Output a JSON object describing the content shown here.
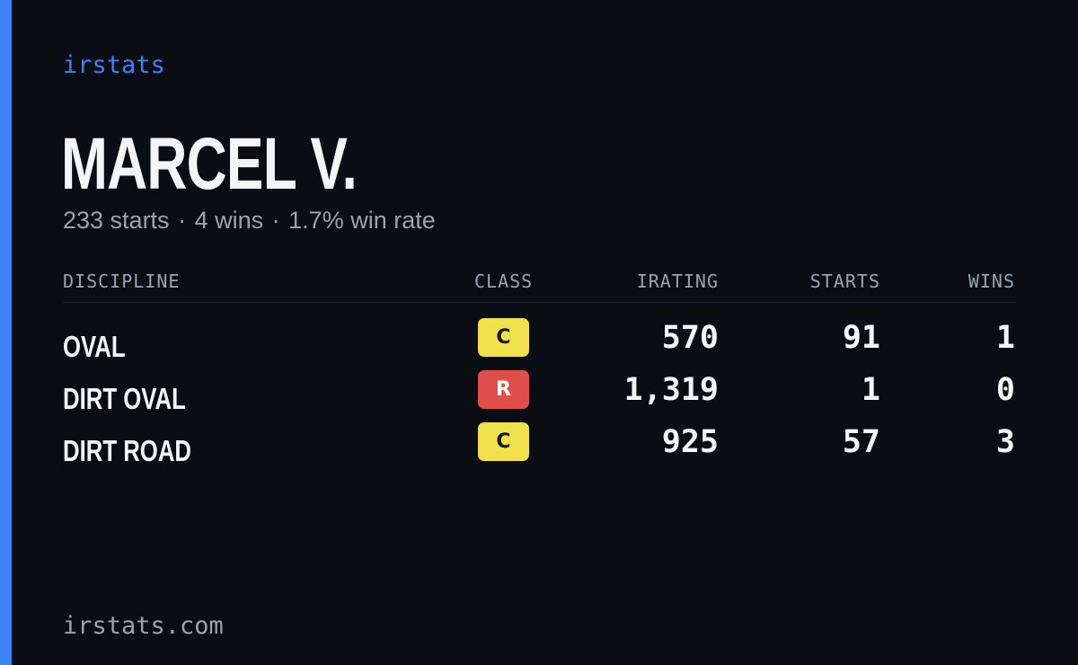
{
  "colors": {
    "background": "#0a0d14",
    "accent": "#3d82f6",
    "text_primary": "#f3f5f8",
    "text_muted": "#9aa3b2",
    "class_c": "#f0e04a",
    "class_r": "#e0504a"
  },
  "brand": "irstats",
  "player": {
    "name": "MARCEL V.",
    "starts_text": "233 starts",
    "wins_text": "4 wins",
    "win_rate_text": "1.7% win rate",
    "separator": "·"
  },
  "table": {
    "headers": {
      "discipline": "DISCIPLINE",
      "class": "CLASS",
      "irating": "IRATING",
      "starts": "STARTS",
      "wins": "WINS"
    },
    "rows": [
      {
        "discipline": "OVAL",
        "class": "C",
        "class_color": "#f0e04a",
        "irating": "570",
        "starts": "91",
        "wins": "1"
      },
      {
        "discipline": "DIRT OVAL",
        "class": "R",
        "class_color": "#e0504a",
        "irating": "1,319",
        "starts": "1",
        "wins": "0"
      },
      {
        "discipline": "DIRT ROAD",
        "class": "C",
        "class_color": "#f0e04a",
        "irating": "925",
        "starts": "57",
        "wins": "3"
      }
    ]
  },
  "footer": {
    "domain": "irstats.com"
  }
}
